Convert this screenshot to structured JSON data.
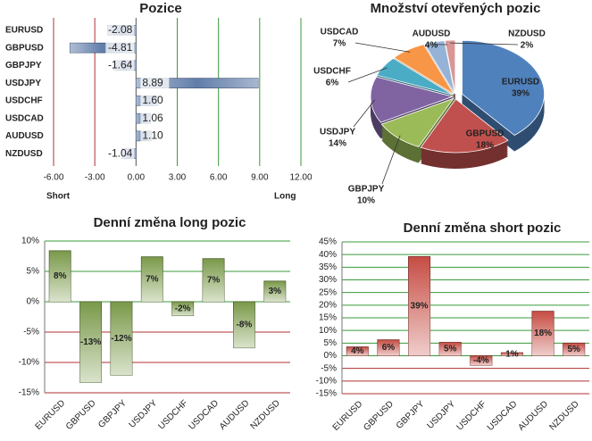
{
  "chart_data": [
    {
      "type": "bar",
      "orientation": "horizontal",
      "title": "Pozice",
      "categories": [
        "EURUSD",
        "GBPUSD",
        "GBPJPY",
        "USDJPY",
        "USDCHF",
        "USDCAD",
        "AUDUSD",
        "NZDUSD"
      ],
      "values": [
        -2.08,
        -4.81,
        -1.64,
        8.89,
        1.6,
        1.06,
        1.1,
        -1.04
      ],
      "value_labels": [
        "-2.08",
        "-4.81",
        "-1.64",
        "8.89",
        "1.60",
        "1.06",
        "1.10",
        "-1.04"
      ],
      "color": "#4f6fa0",
      "xlim": [
        -6,
        12
      ],
      "xticks": [
        {
          "value": -6,
          "label": "-6.00"
        },
        {
          "value": -3,
          "label": "-3.00"
        },
        {
          "value": 0,
          "label": "0.00"
        },
        {
          "value": 3,
          "label": "3.00"
        },
        {
          "value": 6,
          "label": "6.00"
        },
        {
          "value": 9,
          "label": "9.00"
        },
        {
          "value": 12,
          "label": "12.00"
        }
      ],
      "xlabel_left": "Short",
      "xlabel_right": "Long",
      "grid": true
    },
    {
      "type": "pie",
      "title": "Množství otevřených pozic",
      "categories": [
        "EURUSD",
        "GBPUSD",
        "GBPJPY",
        "USDJPY",
        "USDCHF",
        "USDCAD",
        "AUDUSD",
        "NZDUSD"
      ],
      "values": [
        39,
        18,
        10,
        14,
        6,
        7,
        4,
        2
      ],
      "value_labels": [
        "39%",
        "18%",
        "10%",
        "14%",
        "6%",
        "7%",
        "4%",
        "2%"
      ],
      "colors": [
        "#4f81bd",
        "#c0504d",
        "#9bbb59",
        "#8064a2",
        "#4bacc6",
        "#f79646",
        "#95b3d7",
        "#d99694"
      ]
    },
    {
      "type": "bar",
      "orientation": "vertical",
      "title": "Denní změna long pozic",
      "categories": [
        "EURUSD",
        "GBPUSD",
        "GBPJPY",
        "USDJPY",
        "USDCHF",
        "USDCAD",
        "AUDUSD",
        "NZDUSD"
      ],
      "values": [
        8.4,
        -13.3,
        -12.1,
        7.4,
        -2.3,
        7.1,
        -7.6,
        3.4
      ],
      "value_labels": [
        "8%",
        "-13%",
        "-12%",
        "7%",
        "-2%",
        "7%",
        "-8%",
        "3%"
      ],
      "color": "#6b8e35",
      "ylim": [
        -15,
        10
      ],
      "yticks": [
        {
          "value": -15,
          "label": "-15%"
        },
        {
          "value": -10,
          "label": "-10%"
        },
        {
          "value": -5,
          "label": "-5%"
        },
        {
          "value": 0,
          "label": "0%"
        },
        {
          "value": 5,
          "label": "5%"
        },
        {
          "value": 10,
          "label": "10%"
        }
      ],
      "grid": true
    },
    {
      "type": "bar",
      "orientation": "vertical",
      "title": "Denní změna short pozic",
      "categories": [
        "EURUSD",
        "GBPUSD",
        "GBPJPY",
        "USDJPY",
        "USDCHF",
        "USDCAD",
        "AUDUSD",
        "NZDUSD"
      ],
      "values": [
        3.5,
        6.3,
        39.2,
        5.3,
        -3.8,
        1.2,
        17.6,
        5
      ],
      "value_labels": [
        "4%",
        "6%",
        "39%",
        "5%",
        "-4%",
        "1%",
        "18%",
        "5%"
      ],
      "color": "#c0392f",
      "ylim": [
        -15,
        45
      ],
      "yticks": [
        {
          "value": -15,
          "label": "-15%"
        },
        {
          "value": -10,
          "label": "-10%"
        },
        {
          "value": -5,
          "label": "-5%"
        },
        {
          "value": 0,
          "label": "0%"
        },
        {
          "value": 5,
          "label": "5%"
        },
        {
          "value": 10,
          "label": "10%"
        },
        {
          "value": 15,
          "label": "15%"
        },
        {
          "value": 20,
          "label": "20%"
        },
        {
          "value": 25,
          "label": "25%"
        },
        {
          "value": 30,
          "label": "30%"
        },
        {
          "value": 35,
          "label": "35%"
        },
        {
          "value": 40,
          "label": "40%"
        },
        {
          "value": 45,
          "label": "45%"
        }
      ],
      "grid": true
    }
  ]
}
